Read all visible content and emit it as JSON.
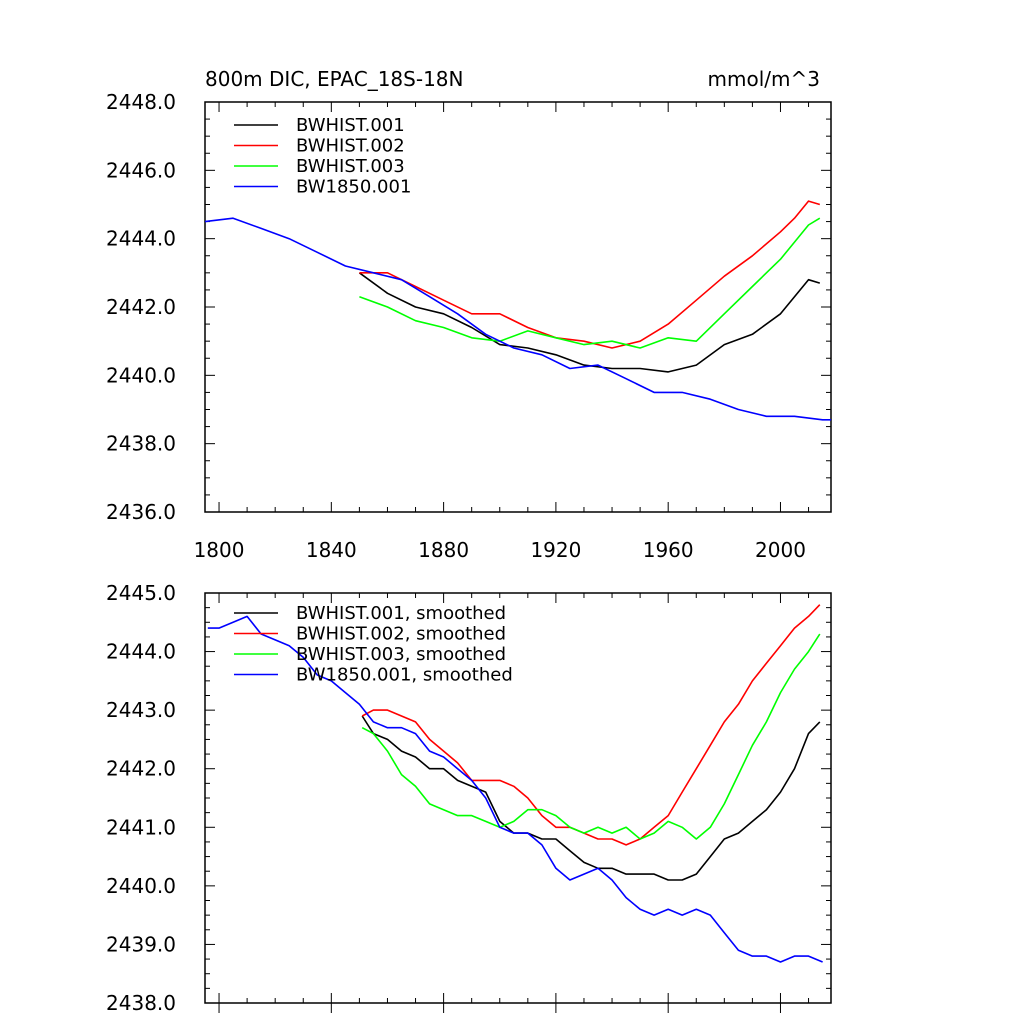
{
  "chart_data": [
    {
      "type": "line",
      "title": "800m DIC, EPAC_18S-18N",
      "units": "mmol/m^3",
      "xlim": [
        1795,
        2018
      ],
      "ylim": [
        2436.0,
        2448.0
      ],
      "x_ticks": [
        1800,
        1840,
        1880,
        1920,
        1960,
        2000
      ],
      "x_tick_labels": [
        "1800",
        "1840",
        "1880",
        "1920",
        "1960",
        "2000"
      ],
      "y_ticks": [
        2436.0,
        2438.0,
        2440.0,
        2442.0,
        2444.0,
        2446.0,
        2448.0
      ],
      "y_tick_labels": [
        "2436.0",
        "2438.0",
        "2440.0",
        "2442.0",
        "2444.0",
        "2446.0",
        "2448.0"
      ],
      "legend": [
        "BWHIST.001",
        "BWHIST.002",
        "BWHIST.003",
        "BW1850.001"
      ],
      "series": [
        {
          "name": "BWHIST.001",
          "color": "#000000",
          "x": [
            1850,
            1860,
            1870,
            1880,
            1890,
            1900,
            1910,
            1920,
            1930,
            1940,
            1950,
            1960,
            1970,
            1980,
            1990,
            2000,
            2005,
            2010,
            2014
          ],
          "y": [
            2443.0,
            2442.4,
            2442.0,
            2441.8,
            2441.4,
            2440.9,
            2440.8,
            2440.6,
            2440.3,
            2440.2,
            2440.2,
            2440.1,
            2440.3,
            2440.9,
            2441.2,
            2441.8,
            2442.3,
            2442.8,
            2442.7
          ]
        },
        {
          "name": "BWHIST.002",
          "color": "#ff0000",
          "x": [
            1850,
            1860,
            1870,
            1880,
            1890,
            1900,
            1910,
            1920,
            1930,
            1940,
            1950,
            1960,
            1970,
            1980,
            1990,
            2000,
            2005,
            2010,
            2014
          ],
          "y": [
            2443.0,
            2443.0,
            2442.6,
            2442.2,
            2441.8,
            2441.8,
            2441.4,
            2441.1,
            2441.0,
            2440.8,
            2441.0,
            2441.5,
            2442.2,
            2442.9,
            2443.5,
            2444.2,
            2444.6,
            2445.1,
            2445.0
          ]
        },
        {
          "name": "BWHIST.003",
          "color": "#00ff00",
          "x": [
            1850,
            1860,
            1870,
            1880,
            1890,
            1900,
            1910,
            1920,
            1930,
            1940,
            1950,
            1960,
            1970,
            1980,
            1990,
            2000,
            2005,
            2010,
            2014
          ],
          "y": [
            2442.3,
            2442.0,
            2441.6,
            2441.4,
            2441.1,
            2441.0,
            2441.3,
            2441.1,
            2440.9,
            2441.0,
            2440.8,
            2441.1,
            2441.0,
            2441.8,
            2442.6,
            2443.4,
            2443.9,
            2444.4,
            2444.6
          ]
        },
        {
          "name": "BW1850.001",
          "color": "#0000ff",
          "x": [
            1795,
            1805,
            1815,
            1825,
            1835,
            1845,
            1855,
            1865,
            1875,
            1885,
            1895,
            1905,
            1915,
            1925,
            1935,
            1945,
            1955,
            1965,
            1975,
            1985,
            1995,
            2005,
            2015,
            2018
          ],
          "y": [
            2444.5,
            2444.6,
            2444.3,
            2444.0,
            2443.6,
            2443.2,
            2443.0,
            2442.8,
            2442.3,
            2441.8,
            2441.2,
            2440.8,
            2440.6,
            2440.2,
            2440.3,
            2439.9,
            2439.5,
            2439.5,
            2439.3,
            2439.0,
            2438.8,
            2438.8,
            2438.7,
            2438.7
          ]
        }
      ]
    },
    {
      "type": "line",
      "xlim": [
        1795,
        2018
      ],
      "ylim": [
        2438.0,
        2445.0
      ],
      "x_ticks": [
        1800,
        1840,
        1880,
        1920,
        1960,
        2000
      ],
      "y_ticks": [
        2438.0,
        2439.0,
        2440.0,
        2441.0,
        2442.0,
        2443.0,
        2444.0,
        2445.0
      ],
      "y_tick_labels": [
        "2438.0",
        "2439.0",
        "2440.0",
        "2441.0",
        "2442.0",
        "2443.0",
        "2444.0",
        "2445.0"
      ],
      "legend": [
        "BWHIST.001, smoothed",
        "BWHIST.002, smoothed",
        "BWHIST.003, smoothed",
        "BW1850.001, smoothed"
      ],
      "series": [
        {
          "name": "BWHIST.001, smoothed",
          "color": "#000000",
          "x": [
            1851,
            1855,
            1860,
            1865,
            1870,
            1875,
            1880,
            1885,
            1890,
            1895,
            1900,
            1905,
            1910,
            1915,
            1920,
            1925,
            1930,
            1935,
            1940,
            1945,
            1950,
            1955,
            1960,
            1965,
            1970,
            1975,
            1980,
            1985,
            1990,
            1995,
            2000,
            2005,
            2010,
            2014
          ],
          "y": [
            2442.9,
            2442.6,
            2442.5,
            2442.3,
            2442.2,
            2442.0,
            2442.0,
            2441.8,
            2441.7,
            2441.6,
            2441.1,
            2440.9,
            2440.9,
            2440.8,
            2440.8,
            2440.6,
            2440.4,
            2440.3,
            2440.3,
            2440.2,
            2440.2,
            2440.2,
            2440.1,
            2440.1,
            2440.2,
            2440.5,
            2440.8,
            2440.9,
            2441.1,
            2441.3,
            2441.6,
            2442.0,
            2442.6,
            2442.8
          ]
        },
        {
          "name": "BWHIST.002, smoothed",
          "color": "#ff0000",
          "x": [
            1851,
            1855,
            1860,
            1865,
            1870,
            1875,
            1880,
            1885,
            1890,
            1895,
            1900,
            1905,
            1910,
            1915,
            1920,
            1925,
            1930,
            1935,
            1940,
            1945,
            1950,
            1955,
            1960,
            1965,
            1970,
            1975,
            1980,
            1985,
            1990,
            1995,
            2000,
            2005,
            2010,
            2014
          ],
          "y": [
            2442.9,
            2443.0,
            2443.0,
            2442.9,
            2442.8,
            2442.5,
            2442.3,
            2442.1,
            2441.8,
            2441.8,
            2441.8,
            2441.7,
            2441.5,
            2441.2,
            2441.0,
            2441.0,
            2440.9,
            2440.8,
            2440.8,
            2440.7,
            2440.8,
            2441.0,
            2441.2,
            2441.6,
            2442.0,
            2442.4,
            2442.8,
            2443.1,
            2443.5,
            2443.8,
            2444.1,
            2444.4,
            2444.6,
            2444.8
          ]
        },
        {
          "name": "BWHIST.003, smoothed",
          "color": "#00ff00",
          "x": [
            1851,
            1855,
            1860,
            1865,
            1870,
            1875,
            1880,
            1885,
            1890,
            1895,
            1900,
            1905,
            1910,
            1915,
            1920,
            1925,
            1930,
            1935,
            1940,
            1945,
            1950,
            1955,
            1960,
            1965,
            1970,
            1975,
            1980,
            1985,
            1990,
            1995,
            2000,
            2005,
            2010,
            2014
          ],
          "y": [
            2442.7,
            2442.6,
            2442.3,
            2441.9,
            2441.7,
            2441.4,
            2441.3,
            2441.2,
            2441.2,
            2441.1,
            2441.0,
            2441.1,
            2441.3,
            2441.3,
            2441.2,
            2441.0,
            2440.9,
            2441.0,
            2440.9,
            2441.0,
            2440.8,
            2440.9,
            2441.1,
            2441.0,
            2440.8,
            2441.0,
            2441.4,
            2441.9,
            2442.4,
            2442.8,
            2443.3,
            2443.7,
            2444.0,
            2444.3
          ]
        },
        {
          "name": "BW1850.001, smoothed",
          "color": "#0000ff",
          "x": [
            1796,
            1800,
            1805,
            1810,
            1815,
            1820,
            1825,
            1830,
            1835,
            1840,
            1845,
            1850,
            1855,
            1860,
            1865,
            1870,
            1875,
            1880,
            1885,
            1890,
            1895,
            1900,
            1905,
            1910,
            1915,
            1920,
            1925,
            1930,
            1935,
            1940,
            1945,
            1950,
            1955,
            1960,
            1965,
            1970,
            1975,
            1980,
            1985,
            1990,
            1995,
            2000,
            2005,
            2010,
            2015
          ],
          "y": [
            2444.4,
            2444.4,
            2444.5,
            2444.6,
            2444.3,
            2444.2,
            2444.1,
            2443.9,
            2443.6,
            2443.5,
            2443.3,
            2443.1,
            2442.8,
            2442.7,
            2442.7,
            2442.6,
            2442.3,
            2442.2,
            2442.0,
            2441.8,
            2441.5,
            2441.0,
            2440.9,
            2440.9,
            2440.7,
            2440.3,
            2440.1,
            2440.2,
            2440.3,
            2440.1,
            2439.8,
            2439.6,
            2439.5,
            2439.6,
            2439.5,
            2439.6,
            2439.5,
            2439.2,
            2438.9,
            2438.8,
            2438.8,
            2438.7,
            2438.8,
            2438.8,
            2438.7
          ]
        }
      ]
    }
  ]
}
